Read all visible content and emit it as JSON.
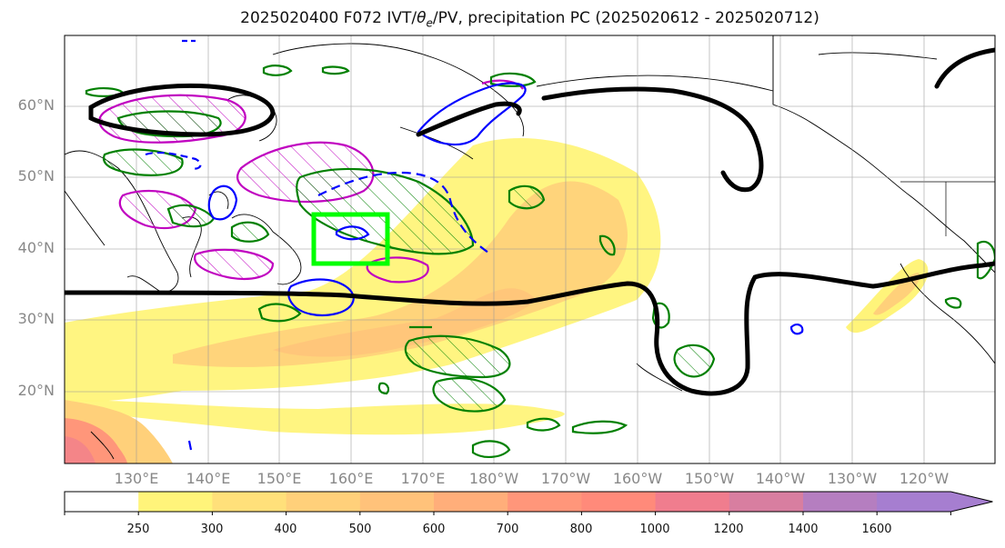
{
  "title": {
    "prefix": "2025020400 F072 IVT/",
    "theta_sym": "θ",
    "theta_sub": "e",
    "suffix": "/PV, precipitation PC (2025020612 - 2025020712)"
  },
  "map": {
    "lat_labels": [
      "60°N",
      "50°N",
      "40°N",
      "30°N",
      "20°N"
    ],
    "lon_labels": [
      "130°E",
      "140°E",
      "150°E",
      "160°E",
      "170°E",
      "180°W",
      "170°W",
      "160°W",
      "150°W",
      "140°W",
      "130°W",
      "120°W"
    ],
    "lat_range": [
      10,
      70
    ],
    "lon_range_east": [
      120,
      250
    ]
  },
  "colorbar": {
    "levels": [
      250,
      300,
      400,
      500,
      600,
      700,
      800,
      1000,
      1200,
      1400,
      1600
    ],
    "labels": [
      "250",
      "300",
      "400",
      "500",
      "600",
      "700",
      "800",
      "1000",
      "1200",
      "1400",
      "1600"
    ],
    "colors": [
      "#ffffff",
      "#fff47a",
      "#ffe07a",
      "#ffd07a",
      "#ffc27a",
      "#ffae7a",
      "#ff967a",
      "#ff8a7a",
      "#f07d8e",
      "#d87ea0",
      "#b57ec0",
      "#a67ed0"
    ]
  },
  "colors": {
    "pv_contour": "#008000",
    "theta_contour": "#0000ff",
    "ivt_contour": "#c000c0",
    "jet_line": "#000000",
    "focus_box": "#00ff00"
  }
}
